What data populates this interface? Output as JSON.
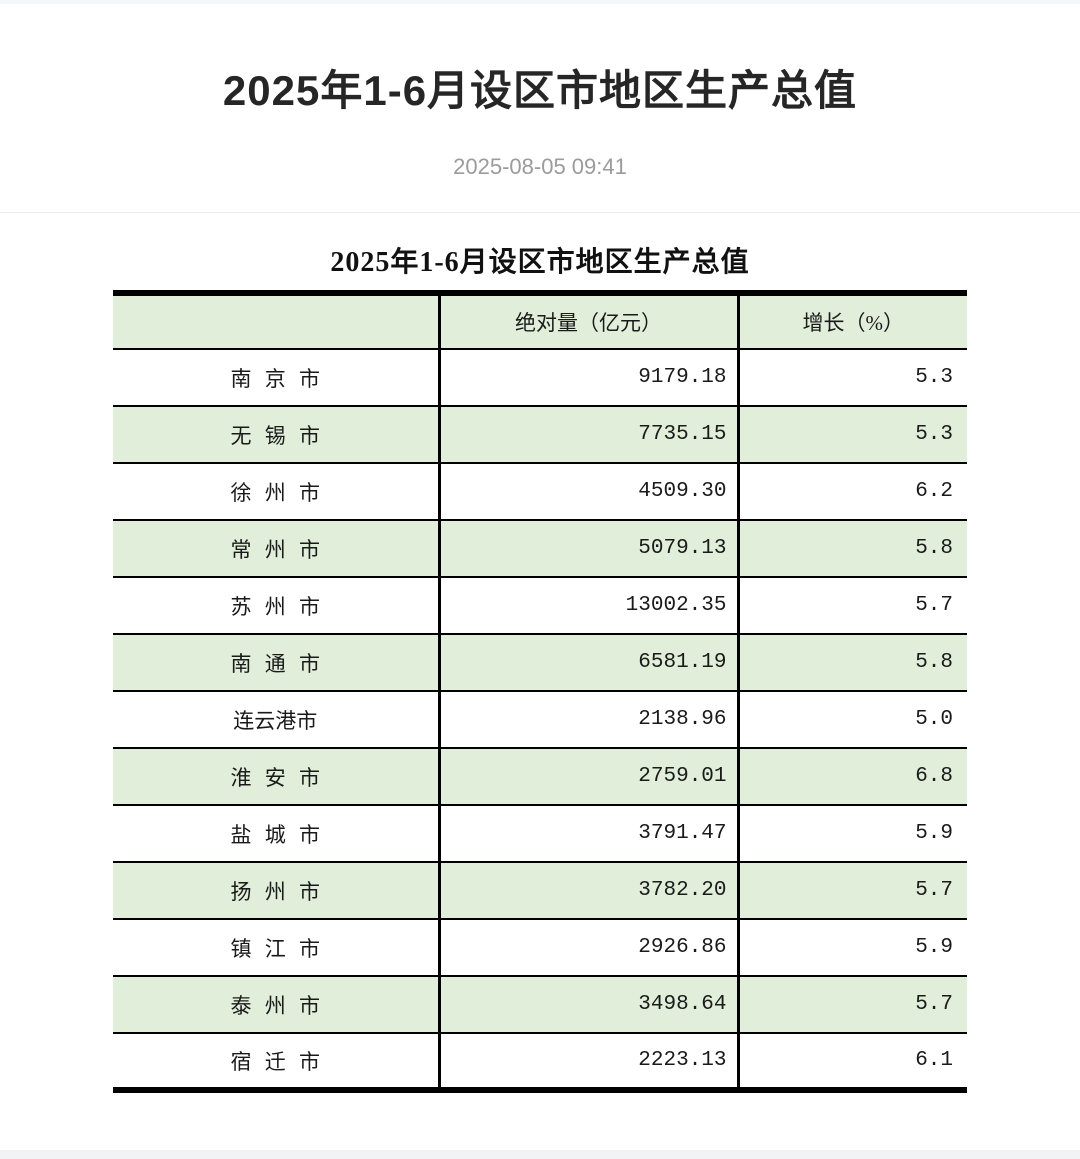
{
  "page_header": {
    "title": "2025年1-6月设区市地区生产总值",
    "date": "2025-08-05 09:41"
  },
  "table": {
    "caption": "2025年1-6月设区市地区生产总值",
    "columns": [
      "",
      "绝对量（亿元）",
      "增长（%）"
    ],
    "rows": [
      {
        "city": "南 京 市",
        "value": "9179.18",
        "growth": "5.3"
      },
      {
        "city": "无 锡 市",
        "value": "7735.15",
        "growth": "5.3"
      },
      {
        "city": "徐 州 市",
        "value": "4509.30",
        "growth": "6.2"
      },
      {
        "city": "常 州 市",
        "value": "5079.13",
        "growth": "5.8"
      },
      {
        "city": "苏 州 市",
        "value": "13002.35",
        "growth": "5.7"
      },
      {
        "city": "南 通 市",
        "value": "6581.19",
        "growth": "5.8"
      },
      {
        "city": "连云港市",
        "value": "2138.96",
        "growth": "5.0"
      },
      {
        "city": "淮 安 市",
        "value": "2759.01",
        "growth": "6.8"
      },
      {
        "city": "盐 城 市",
        "value": "3791.47",
        "growth": "5.9"
      },
      {
        "city": "扬 州 市",
        "value": "3782.20",
        "growth": "5.7"
      },
      {
        "city": "镇 江 市",
        "value": "2926.86",
        "growth": "5.9"
      },
      {
        "city": "泰 州 市",
        "value": "3498.64",
        "growth": "5.7"
      },
      {
        "city": "宿 迁 市",
        "value": "2223.13",
        "growth": "6.1"
      }
    ]
  },
  "colors": {
    "row_highlight_green": "#e0eeda",
    "table_border": "#000000",
    "page_title_text": "#262626",
    "date_text": "#9b9b9b",
    "header_divider": "#ececec",
    "page_edge_strip": "#f4f5f6"
  }
}
